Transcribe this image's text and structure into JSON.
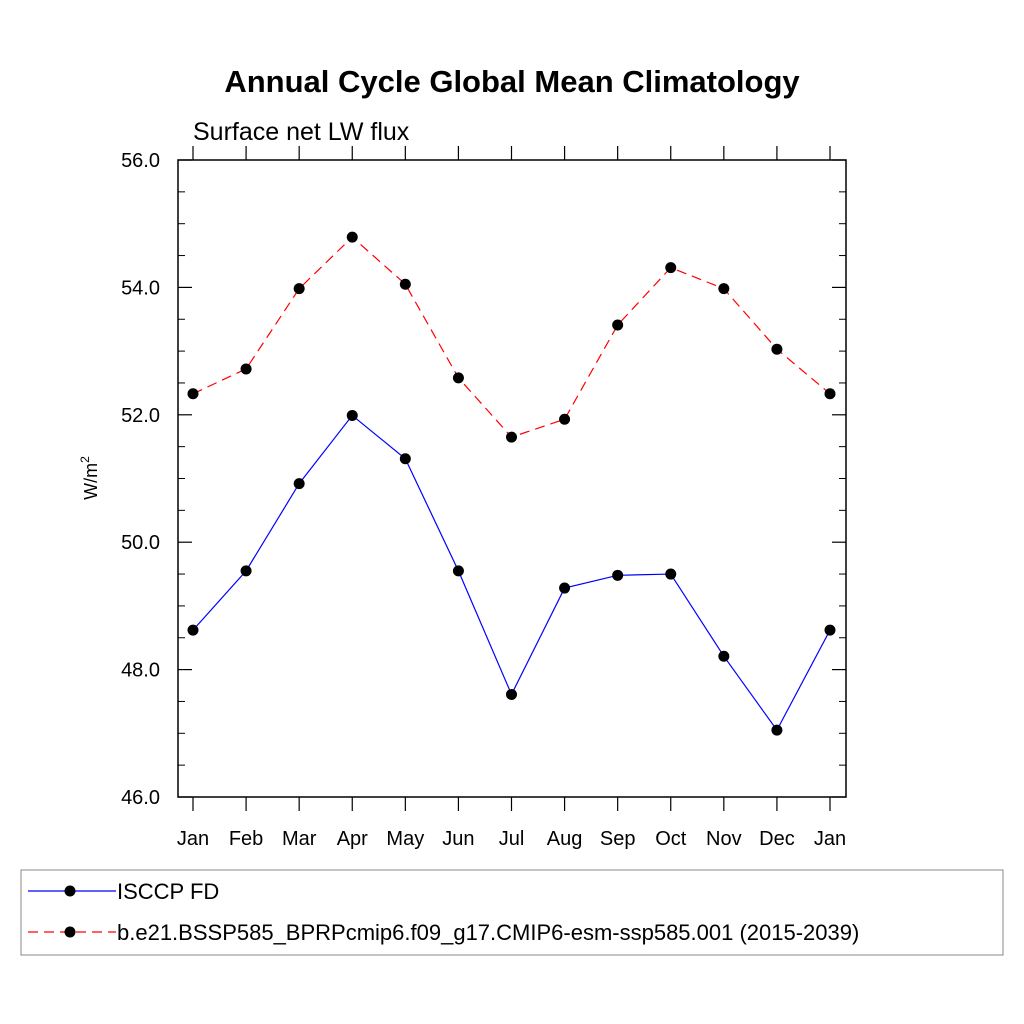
{
  "chart_data": {
    "type": "line",
    "title": "Annual Cycle Global Mean Climatology",
    "subtitle": "Surface net LW flux",
    "xlabel": "",
    "ylabel": "W/m",
    "ylabel_superscript": "2",
    "categories": [
      "Jan",
      "Feb",
      "Mar",
      "Apr",
      "May",
      "Jun",
      "Jul",
      "Aug",
      "Sep",
      "Oct",
      "Nov",
      "Dec",
      "Jan"
    ],
    "ylim": [
      46.0,
      56.0
    ],
    "yticks": [
      "46.0",
      "48.0",
      "50.0",
      "52.0",
      "54.0",
      "56.0"
    ],
    "ytick_values": [
      46,
      48,
      50,
      52,
      54,
      56
    ],
    "grid": false,
    "legend_position": "bottom",
    "series": [
      {
        "name": "ISCCP FD",
        "color": "#0000ff",
        "dash": "solid",
        "values": [
          48.62,
          49.55,
          50.92,
          51.99,
          51.31,
          49.55,
          47.61,
          49.28,
          49.48,
          49.5,
          48.21,
          47.05,
          48.62
        ]
      },
      {
        "name": "b.e21.BSSP585_BPRPcmip6.f09_g17.CMIP6-esm-ssp585.001 (2015-2039)",
        "color": "#ff0000",
        "dash": "dashed",
        "values": [
          52.33,
          52.72,
          53.98,
          54.79,
          54.05,
          52.58,
          51.65,
          51.93,
          53.41,
          54.31,
          53.98,
          53.03,
          52.33
        ]
      }
    ]
  }
}
